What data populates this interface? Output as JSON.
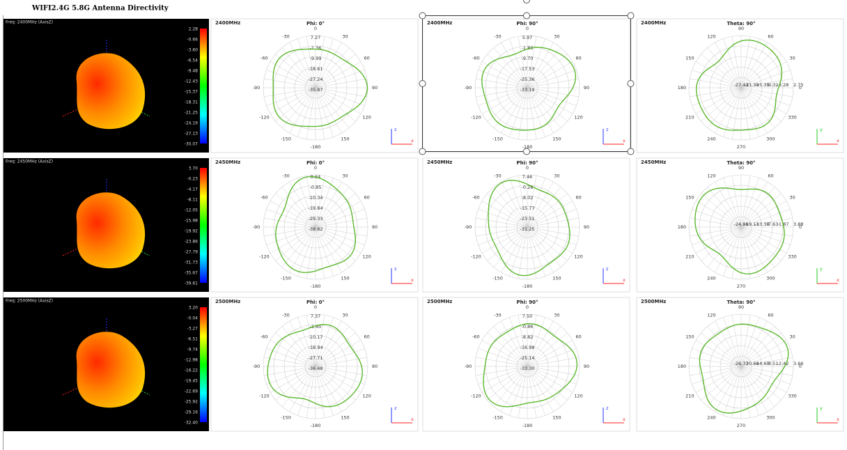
{
  "header": {
    "title": "WIFI2.4G 5.8G Antenna Directivity"
  },
  "rows": [
    {
      "view3d": {
        "label": "Freq: 2400MHz (AxisZ)",
        "colorbar": [
          "2.28",
          "-0.66",
          "-3.60",
          "-6.54",
          "-9.48",
          "-12.43",
          "-15.37",
          "-18.31",
          "-21.25",
          "-24.19",
          "-27.13",
          "-30.07"
        ]
      },
      "plots": [
        {
          "freq": "2400MHz",
          "title": "Phi: 0°",
          "angles": [
            "0",
            "30",
            "60",
            "90",
            "120",
            "150",
            "-180",
            "-150",
            "-120",
            "-90",
            "-60",
            "-30"
          ],
          "radii": [
            "7.27",
            "-1.36",
            "-9.99",
            "-18.61",
            "-27.24",
            "-35.87"
          ],
          "axes": [
            "z",
            "x"
          ]
        },
        {
          "freq": "2400MHz",
          "title": "Phi: 90°",
          "angles": [
            "0",
            "30",
            "60",
            "90",
            "120",
            "150",
            "-180",
            "-150",
            "-120",
            "-90",
            "-60",
            "-30"
          ],
          "radii": [
            "5.97",
            "-1.86",
            "-9.70",
            "-17.53",
            "-25.36",
            "-33.19"
          ],
          "axes": [
            "z",
            "x"
          ]
        },
        {
          "freq": "2400MHz",
          "title": "Theta: 90°",
          "angles": [
            "0",
            "30",
            "60",
            "90",
            "120",
            "150",
            "180",
            "210",
            "240",
            "270",
            "300",
            "330"
          ],
          "radii": [
            "2.75",
            "-3.28",
            "-9.32",
            "-15.35",
            "-21.39",
            "-27.43"
          ],
          "axes": [
            "y",
            "x"
          ]
        }
      ]
    },
    {
      "view3d": {
        "label": "Freq: 2450MHz (AxisZ)",
        "colorbar": [
          "3.70",
          "-0.23",
          "-4.17",
          "-8.11",
          "-12.05",
          "-15.98",
          "-19.92",
          "-23.86",
          "-27.79",
          "-31.73",
          "-35.67",
          "-39.61"
        ]
      },
      "plots": [
        {
          "freq": "2450MHz",
          "title": "Phi: 0°",
          "angles": [
            "0",
            "30",
            "60",
            "90",
            "120",
            "150",
            "-180",
            "-150",
            "-120",
            "-90",
            "-60",
            "-30"
          ],
          "radii": [
            "8.64",
            "-0.85",
            "-10.34",
            "-19.84",
            "-29.33",
            "-38.82"
          ],
          "axes": [
            "z",
            "x"
          ]
        },
        {
          "freq": "2450MHz",
          "title": "Phi: 90°",
          "angles": [
            "0",
            "30",
            "60",
            "90",
            "120",
            "150",
            "-180",
            "-150",
            "-120",
            "-90",
            "-60",
            "-30"
          ],
          "radii": [
            "7.46",
            "-0.28",
            "-8.02",
            "-15.77",
            "-23.51",
            "-31.25"
          ],
          "axes": [
            "z",
            "x"
          ]
        },
        {
          "freq": "2450MHz",
          "title": "Theta: 90°",
          "angles": [
            "0",
            "30",
            "60",
            "90",
            "120",
            "150",
            "180",
            "210",
            "240",
            "270",
            "300",
            "330"
          ],
          "radii": [
            "3.88",
            "-1.87",
            "-7.63",
            "-13.38",
            "-19.13",
            "-24.86"
          ],
          "axes": [
            "y",
            "x"
          ]
        }
      ]
    },
    {
      "view3d": {
        "label": "Freq: 2500MHz (AxisZ)",
        "colorbar": [
          "3.20",
          "-0.04",
          "-3.27",
          "-6.51",
          "-9.74",
          "-12.98",
          "-16.22",
          "-19.45",
          "-22.69",
          "-25.92",
          "-29.16",
          "-32.40"
        ]
      },
      "plots": [
        {
          "freq": "2500MHz",
          "title": "Phi: 0°",
          "angles": [
            "0",
            "30",
            "60",
            "90",
            "120",
            "150",
            "-180",
            "-150",
            "-120",
            "-90",
            "-60",
            "-30"
          ],
          "radii": [
            "7.37",
            "-1.40",
            "-10.17",
            "-18.94",
            "-27.71",
            "-36.48"
          ],
          "axes": [
            "z",
            "x"
          ]
        },
        {
          "freq": "2500MHz",
          "title": "Phi: 90°",
          "angles": [
            "0",
            "30",
            "60",
            "90",
            "120",
            "150",
            "-180",
            "-150",
            "-120",
            "-90",
            "-60",
            "-30"
          ],
          "radii": [
            "7.50",
            "-0.86",
            "-8.82",
            "-16.98",
            "-25.14",
            "-33.30"
          ],
          "axes": [
            "z",
            "x"
          ]
        },
        {
          "freq": "2500MHz",
          "title": "Theta: 90°",
          "angles": [
            "0",
            "30",
            "60",
            "90",
            "120",
            "150",
            "180",
            "210",
            "240",
            "270",
            "300",
            "330"
          ],
          "radii": [
            "3.66",
            "-2.42",
            "-8.51",
            "-14.60",
            "-20.68",
            "-26.77"
          ],
          "axes": [
            "y",
            "x"
          ]
        }
      ]
    }
  ]
}
